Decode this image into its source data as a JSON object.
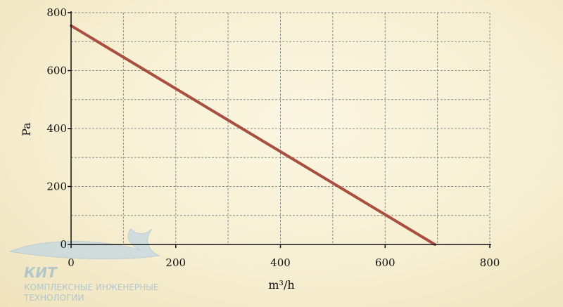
{
  "chart_data": {
    "type": "line",
    "title": "",
    "xlabel": "m³/h",
    "ylabel": "Pa",
    "xlim": [
      0,
      800
    ],
    "ylim": [
      0,
      800
    ],
    "xticks": [
      "0",
      "200",
      "400",
      "600",
      "800"
    ],
    "yticks": [
      "0",
      "200",
      "400",
      "600",
      "800"
    ],
    "grid": true,
    "series": [
      {
        "x": [
          0,
          695
        ],
        "y": [
          755,
          0
        ],
        "color": "#a94f3f"
      }
    ]
  },
  "logo": {
    "name": "КИТ",
    "line1": "КОМПЛЕКСНЫЕ ИНЖЕНЕРНЫЕ",
    "line2": "ТЕХНОЛОГИИ"
  }
}
